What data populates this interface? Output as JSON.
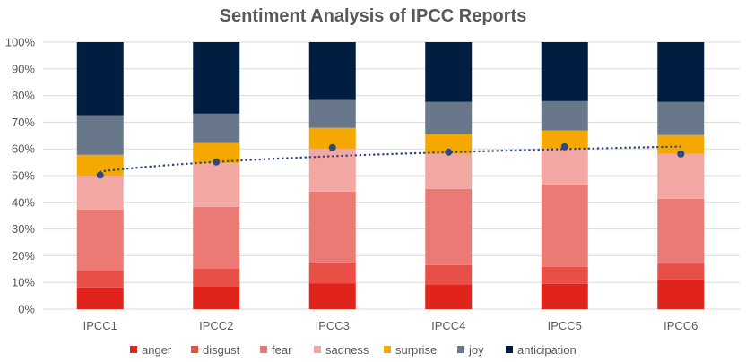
{
  "chart_data": {
    "type": "bar",
    "stacked": true,
    "percent_stacked": true,
    "title": "Sentiment Analysis of IPCC Reports",
    "xlabel": "",
    "ylabel": "",
    "ylim": [
      0,
      100
    ],
    "yticks": [
      "0%",
      "10%",
      "20%",
      "30%",
      "40%",
      "50%",
      "60%",
      "70%",
      "80%",
      "90%",
      "100%"
    ],
    "grid": true,
    "legend_position": "bottom",
    "categories": [
      "IPCC1",
      "IPCC2",
      "IPCC3",
      "IPCC4",
      "IPCC5",
      "IPCC6"
    ],
    "series": [
      {
        "name": "anger",
        "color": "#E0241B",
        "values": [
          8.1,
          8.4,
          9.7,
          9.2,
          9.5,
          11.1
        ]
      },
      {
        "name": "disgust",
        "color": "#E84F47",
        "values": [
          6.3,
          6.7,
          7.8,
          7.3,
          6.3,
          6.0
        ]
      },
      {
        "name": "fear",
        "color": "#EC7A74",
        "values": [
          22.9,
          23.2,
          26.5,
          28.5,
          30.9,
          24.2
        ]
      },
      {
        "name": "sadness",
        "color": "#F2A7A3",
        "values": [
          12.6,
          16.3,
          16.0,
          13.2,
          13.4,
          16.8
        ]
      },
      {
        "name": "surprise",
        "color": "#F5A800",
        "values": [
          7.9,
          7.6,
          7.9,
          7.3,
          6.8,
          7.1
        ]
      },
      {
        "name": "joy",
        "color": "#687789",
        "values": [
          14.8,
          11.0,
          10.4,
          12.1,
          11.0,
          12.4
        ]
      },
      {
        "name": "anticipation",
        "color": "#001E41",
        "values": [
          27.4,
          26.8,
          21.7,
          22.4,
          22.1,
          22.4
        ]
      }
    ],
    "point_series": {
      "color": "#2F4A7A",
      "values": [
        50.2,
        55.1,
        60.5,
        58.8,
        60.8,
        58.1
      ],
      "trendline": "dotted"
    }
  }
}
